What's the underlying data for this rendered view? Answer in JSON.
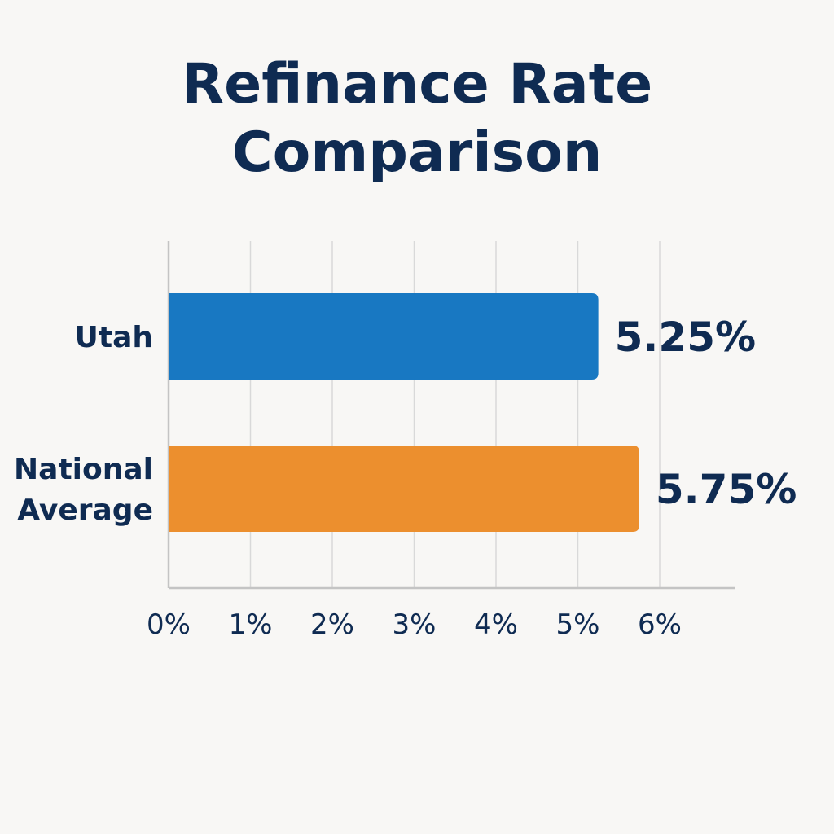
{
  "chart_data": {
    "type": "bar",
    "orientation": "horizontal",
    "title_lines": [
      "Refinance Rate",
      "Comparison"
    ],
    "categories": [
      "Utah",
      "National Average"
    ],
    "category_label_lines": [
      [
        "Utah"
      ],
      [
        "National",
        "Average"
      ]
    ],
    "values": [
      5.25,
      5.75
    ],
    "value_labels": [
      "5.25%",
      "5.75%"
    ],
    "bar_colors": [
      "#1878c2",
      "#ec8f2e"
    ],
    "xlim": [
      0,
      7
    ],
    "x_ticks": [
      0,
      1,
      2,
      3,
      4,
      5,
      6
    ],
    "x_tick_labels": [
      "0%",
      "1%",
      "2%",
      "3%",
      "4%",
      "5%",
      "6%"
    ],
    "grid": true,
    "legend": "none"
  }
}
